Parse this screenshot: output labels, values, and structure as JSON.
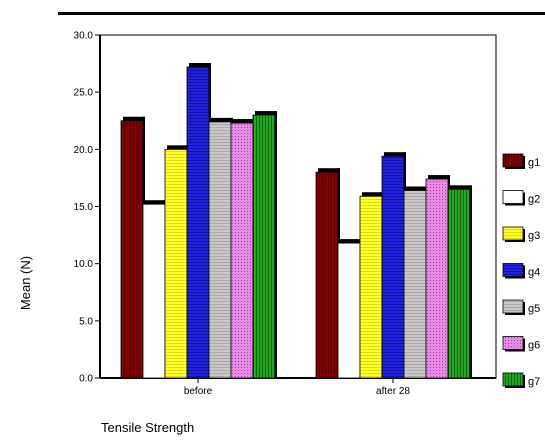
{
  "chart_data": {
    "type": "bar",
    "categories": [
      "before",
      "after 28"
    ],
    "series": [
      {
        "name": "g1",
        "values": [
          22.5,
          18.0
        ],
        "color": "#800000",
        "pattern": "vlines-dark"
      },
      {
        "name": "g2",
        "values": [
          15.2,
          11.8
        ],
        "color": "#ffffff",
        "pattern": "none"
      },
      {
        "name": "g3",
        "values": [
          20.0,
          15.9
        ],
        "color": "#ffff33",
        "pattern": "hlines"
      },
      {
        "name": "g4",
        "values": [
          27.2,
          19.4
        ],
        "color": "#2222dd",
        "pattern": "hlines"
      },
      {
        "name": "g5",
        "values": [
          22.4,
          16.4
        ],
        "color": "#c0c0c0",
        "pattern": "hlines"
      },
      {
        "name": "g6",
        "values": [
          22.3,
          17.4
        ],
        "color": "#dd66dd",
        "pattern": "dots"
      },
      {
        "name": "g7",
        "values": [
          23.0,
          16.5
        ],
        "color": "#119911",
        "pattern": "vlines"
      }
    ],
    "ylabel": "Mean (N)",
    "xlabel": "Tensile Strength",
    "ylim": [
      0,
      30
    ],
    "yticks": [
      "0.0",
      "5.0",
      "10.0",
      "15.0",
      "20.0",
      "25.0",
      "30.0"
    ],
    "legend_position": "right",
    "grid": false
  }
}
